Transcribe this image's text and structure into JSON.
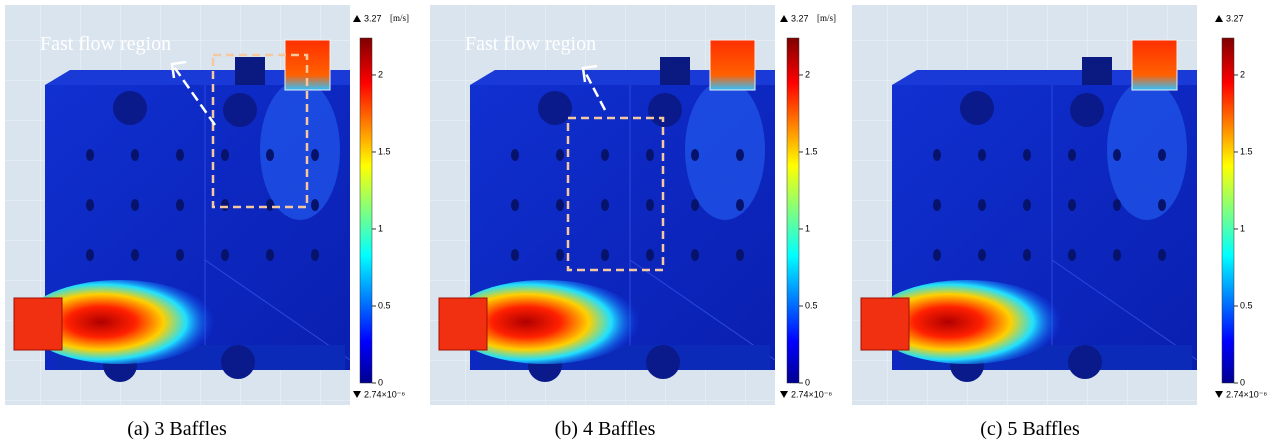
{
  "panels": [
    {
      "caption": "(a) 3 Baffles",
      "annotation": "Fast flow region",
      "colorbar": {
        "max_label": 3.27,
        "unit": "[m/s]",
        "ticks": [
          0,
          0.5,
          1,
          1.5,
          2
        ],
        "min_label": "2.74×10⁻⁶"
      }
    },
    {
      "caption": "(b) 4 Baffles",
      "annotation": "Fast flow region",
      "colorbar": {
        "max_label": 3.27,
        "unit": "[m/s]",
        "ticks": [
          0,
          0.5,
          1,
          1.5,
          2
        ],
        "min_label": "2.74×10⁻⁶"
      }
    },
    {
      "caption": "(c) 5 Baffles",
      "colorbar": {
        "max_label": 3.27,
        "ticks": [
          0,
          0.5,
          1,
          1.5,
          2
        ],
        "min_label": "2.74×10⁻⁶"
      }
    }
  ]
}
